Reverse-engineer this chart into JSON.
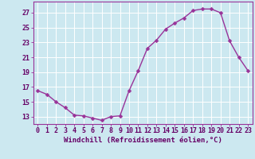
{
  "x": [
    0,
    1,
    2,
    3,
    4,
    5,
    6,
    7,
    8,
    9,
    10,
    11,
    12,
    13,
    14,
    15,
    16,
    17,
    18,
    19,
    20,
    21,
    22,
    23
  ],
  "y": [
    16.5,
    16.0,
    15.0,
    14.2,
    13.2,
    13.1,
    12.8,
    12.5,
    13.0,
    13.1,
    16.5,
    19.2,
    22.2,
    23.3,
    24.8,
    25.6,
    26.3,
    27.3,
    27.5,
    27.5,
    27.0,
    23.2,
    21.0,
    19.2
  ],
  "line_color": "#993399",
  "marker": "D",
  "marker_size": 2.5,
  "line_width": 1.0,
  "bg_color": "#cce8f0",
  "grid_color": "#ffffff",
  "xlabel": "Windchill (Refroidissement éolien,°C)",
  "xlabel_fontsize": 6.5,
  "tick_fontsize": 6.0,
  "yticks": [
    13,
    15,
    17,
    19,
    21,
    23,
    25,
    27
  ],
  "xtick_labels": [
    "0",
    "1",
    "2",
    "3",
    "4",
    "5",
    "6",
    "7",
    "8",
    "9",
    "10",
    "11",
    "12",
    "13",
    "14",
    "15",
    "16",
    "17",
    "18",
    "19",
    "20",
    "21",
    "22",
    "23"
  ],
  "xlim": [
    -0.5,
    23.5
  ],
  "ylim": [
    12.0,
    28.5
  ],
  "text_color": "#660066",
  "spine_color": "#993399"
}
